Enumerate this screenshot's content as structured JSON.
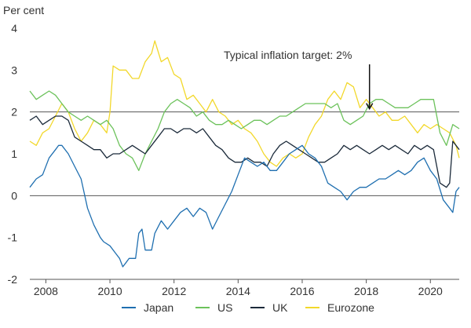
{
  "chart_data": {
    "type": "line",
    "ylabel": "Per cent",
    "ylim": [
      -2,
      4
    ],
    "xlim": [
      2007.5,
      2020.9
    ],
    "y_ticks": [
      -2,
      -1,
      0,
      1,
      2,
      3,
      4
    ],
    "x_ticks": [
      "2008",
      "2010",
      "2012",
      "2014",
      "2016",
      "2018",
      "2020"
    ],
    "annotation": {
      "text": "Typical inflation target: 2%",
      "x": 2018.1,
      "y": 2.0
    },
    "reference_line": 2,
    "zero_line": 0,
    "legend_position": "bottom",
    "colors": {
      "Japan": "#1f6fb0",
      "US": "#6cc25b",
      "UK": "#1b2a3a",
      "Eurozone": "#f2d82b",
      "grid": "#d0d0d0",
      "axis_text": "#333333"
    },
    "series": [
      {
        "name": "Japan",
        "points": [
          [
            2007.5,
            0.2
          ],
          [
            2007.7,
            0.4
          ],
          [
            2007.9,
            0.5
          ],
          [
            2008.1,
            0.9
          ],
          [
            2008.3,
            1.1
          ],
          [
            2008.4,
            1.2
          ],
          [
            2008.5,
            1.2
          ],
          [
            2008.7,
            1.0
          ],
          [
            2008.9,
            0.7
          ],
          [
            2009.1,
            0.4
          ],
          [
            2009.3,
            -0.3
          ],
          [
            2009.5,
            -0.7
          ],
          [
            2009.7,
            -1.0
          ],
          [
            2009.8,
            -1.1
          ],
          [
            2010.0,
            -1.2
          ],
          [
            2010.2,
            -1.4
          ],
          [
            2010.3,
            -1.5
          ],
          [
            2010.4,
            -1.7
          ],
          [
            2010.5,
            -1.6
          ],
          [
            2010.6,
            -1.5
          ],
          [
            2010.8,
            -1.5
          ],
          [
            2010.9,
            -0.9
          ],
          [
            2011.0,
            -0.8
          ],
          [
            2011.1,
            -1.3
          ],
          [
            2011.3,
            -1.3
          ],
          [
            2011.4,
            -0.9
          ],
          [
            2011.6,
            -0.6
          ],
          [
            2011.8,
            -0.8
          ],
          [
            2012.0,
            -0.6
          ],
          [
            2012.2,
            -0.4
          ],
          [
            2012.4,
            -0.3
          ],
          [
            2012.6,
            -0.5
          ],
          [
            2012.8,
            -0.3
          ],
          [
            2013.0,
            -0.4
          ],
          [
            2013.1,
            -0.6
          ],
          [
            2013.2,
            -0.8
          ],
          [
            2013.4,
            -0.5
          ],
          [
            2013.6,
            -0.2
          ],
          [
            2013.8,
            0.1
          ],
          [
            2014.0,
            0.5
          ],
          [
            2014.2,
            0.9
          ],
          [
            2014.4,
            0.8
          ],
          [
            2014.6,
            0.7
          ],
          [
            2014.8,
            0.8
          ],
          [
            2015.0,
            0.6
          ],
          [
            2015.2,
            0.6
          ],
          [
            2015.4,
            0.8
          ],
          [
            2015.6,
            1.0
          ],
          [
            2015.8,
            1.1
          ],
          [
            2016.0,
            1.2
          ],
          [
            2016.2,
            1.0
          ],
          [
            2016.4,
            0.9
          ],
          [
            2016.6,
            0.7
          ],
          [
            2016.8,
            0.3
          ],
          [
            2017.0,
            0.2
          ],
          [
            2017.2,
            0.1
          ],
          [
            2017.4,
            -0.1
          ],
          [
            2017.6,
            0.1
          ],
          [
            2017.8,
            0.2
          ],
          [
            2018.0,
            0.2
          ],
          [
            2018.2,
            0.3
          ],
          [
            2018.4,
            0.4
          ],
          [
            2018.6,
            0.4
          ],
          [
            2018.8,
            0.5
          ],
          [
            2019.0,
            0.6
          ],
          [
            2019.2,
            0.5
          ],
          [
            2019.4,
            0.6
          ],
          [
            2019.6,
            0.8
          ],
          [
            2019.8,
            0.9
          ],
          [
            2020.0,
            0.6
          ],
          [
            2020.2,
            0.4
          ],
          [
            2020.4,
            -0.1
          ],
          [
            2020.6,
            -0.3
          ],
          [
            2020.7,
            -0.4
          ],
          [
            2020.8,
            0.1
          ],
          [
            2020.9,
            0.2
          ]
        ]
      },
      {
        "name": "US",
        "points": [
          [
            2007.5,
            2.5
          ],
          [
            2007.7,
            2.3
          ],
          [
            2007.9,
            2.4
          ],
          [
            2008.1,
            2.5
          ],
          [
            2008.3,
            2.4
          ],
          [
            2008.5,
            2.2
          ],
          [
            2008.7,
            2.0
          ],
          [
            2008.9,
            1.9
          ],
          [
            2009.1,
            1.8
          ],
          [
            2009.3,
            1.9
          ],
          [
            2009.5,
            1.8
          ],
          [
            2009.7,
            1.7
          ],
          [
            2009.9,
            1.8
          ],
          [
            2010.1,
            1.6
          ],
          [
            2010.3,
            1.2
          ],
          [
            2010.5,
            1.0
          ],
          [
            2010.7,
            0.9
          ],
          [
            2010.9,
            0.6
          ],
          [
            2011.1,
            1.0
          ],
          [
            2011.3,
            1.3
          ],
          [
            2011.5,
            1.6
          ],
          [
            2011.7,
            2.0
          ],
          [
            2011.9,
            2.2
          ],
          [
            2012.1,
            2.3
          ],
          [
            2012.3,
            2.2
          ],
          [
            2012.5,
            2.1
          ],
          [
            2012.7,
            1.9
          ],
          [
            2012.9,
            2.0
          ],
          [
            2013.1,
            1.8
          ],
          [
            2013.3,
            1.7
          ],
          [
            2013.5,
            1.7
          ],
          [
            2013.7,
            1.8
          ],
          [
            2013.9,
            1.7
          ],
          [
            2014.1,
            1.6
          ],
          [
            2014.3,
            1.7
          ],
          [
            2014.5,
            1.8
          ],
          [
            2014.7,
            1.8
          ],
          [
            2014.9,
            1.7
          ],
          [
            2015.1,
            1.8
          ],
          [
            2015.3,
            1.9
          ],
          [
            2015.5,
            1.9
          ],
          [
            2015.7,
            2.0
          ],
          [
            2015.9,
            2.1
          ],
          [
            2016.1,
            2.2
          ],
          [
            2016.3,
            2.2
          ],
          [
            2016.5,
            2.2
          ],
          [
            2016.7,
            2.2
          ],
          [
            2016.9,
            2.1
          ],
          [
            2017.1,
            2.2
          ],
          [
            2017.3,
            1.8
          ],
          [
            2017.5,
            1.7
          ],
          [
            2017.7,
            1.8
          ],
          [
            2017.9,
            1.9
          ],
          [
            2018.1,
            2.2
          ],
          [
            2018.3,
            2.3
          ],
          [
            2018.5,
            2.3
          ],
          [
            2018.7,
            2.2
          ],
          [
            2018.9,
            2.1
          ],
          [
            2019.1,
            2.1
          ],
          [
            2019.3,
            2.1
          ],
          [
            2019.5,
            2.2
          ],
          [
            2019.7,
            2.3
          ],
          [
            2019.9,
            2.3
          ],
          [
            2020.1,
            2.3
          ],
          [
            2020.3,
            1.5
          ],
          [
            2020.5,
            1.2
          ],
          [
            2020.7,
            1.7
          ],
          [
            2020.9,
            1.6
          ]
        ]
      },
      {
        "name": "UK",
        "points": [
          [
            2007.5,
            1.8
          ],
          [
            2007.7,
            1.9
          ],
          [
            2007.9,
            1.7
          ],
          [
            2008.1,
            1.8
          ],
          [
            2008.3,
            1.9
          ],
          [
            2008.5,
            1.9
          ],
          [
            2008.7,
            1.8
          ],
          [
            2008.9,
            1.4
          ],
          [
            2009.1,
            1.3
          ],
          [
            2009.3,
            1.2
          ],
          [
            2009.5,
            1.1
          ],
          [
            2009.7,
            1.1
          ],
          [
            2009.9,
            0.9
          ],
          [
            2010.1,
            1.0
          ],
          [
            2010.3,
            1.0
          ],
          [
            2010.5,
            1.1
          ],
          [
            2010.7,
            1.2
          ],
          [
            2010.9,
            1.1
          ],
          [
            2011.1,
            1.0
          ],
          [
            2011.3,
            1.2
          ],
          [
            2011.5,
            1.4
          ],
          [
            2011.7,
            1.6
          ],
          [
            2011.9,
            1.6
          ],
          [
            2012.1,
            1.5
          ],
          [
            2012.3,
            1.6
          ],
          [
            2012.5,
            1.6
          ],
          [
            2012.7,
            1.5
          ],
          [
            2012.9,
            1.6
          ],
          [
            2013.1,
            1.4
          ],
          [
            2013.3,
            1.2
          ],
          [
            2013.5,
            1.1
          ],
          [
            2013.7,
            0.9
          ],
          [
            2013.9,
            0.8
          ],
          [
            2014.1,
            0.8
          ],
          [
            2014.3,
            0.9
          ],
          [
            2014.5,
            0.8
          ],
          [
            2014.7,
            0.8
          ],
          [
            2014.9,
            0.7
          ],
          [
            2015.1,
            1.0
          ],
          [
            2015.3,
            1.2
          ],
          [
            2015.5,
            1.3
          ],
          [
            2015.7,
            1.2
          ],
          [
            2015.9,
            1.1
          ],
          [
            2016.1,
            1.0
          ],
          [
            2016.3,
            0.9
          ],
          [
            2016.5,
            0.8
          ],
          [
            2016.7,
            0.8
          ],
          [
            2016.9,
            0.9
          ],
          [
            2017.1,
            1.0
          ],
          [
            2017.3,
            1.2
          ],
          [
            2017.5,
            1.1
          ],
          [
            2017.7,
            1.2
          ],
          [
            2017.9,
            1.1
          ],
          [
            2018.1,
            1.0
          ],
          [
            2018.3,
            1.1
          ],
          [
            2018.5,
            1.2
          ],
          [
            2018.7,
            1.1
          ],
          [
            2018.9,
            1.2
          ],
          [
            2019.1,
            1.1
          ],
          [
            2019.3,
            1.0
          ],
          [
            2019.5,
            1.2
          ],
          [
            2019.7,
            1.1
          ],
          [
            2019.9,
            1.2
          ],
          [
            2020.1,
            1.1
          ],
          [
            2020.3,
            0.3
          ],
          [
            2020.5,
            0.2
          ],
          [
            2020.6,
            0.3
          ],
          [
            2020.7,
            1.3
          ],
          [
            2020.8,
            1.2
          ],
          [
            2020.9,
            1.1
          ]
        ]
      },
      {
        "name": "Eurozone",
        "points": [
          [
            2007.5,
            1.3
          ],
          [
            2007.7,
            1.2
          ],
          [
            2007.9,
            1.5
          ],
          [
            2008.1,
            1.6
          ],
          [
            2008.3,
            1.9
          ],
          [
            2008.5,
            2.2
          ],
          [
            2008.7,
            2.0
          ],
          [
            2008.9,
            1.6
          ],
          [
            2009.1,
            1.3
          ],
          [
            2009.3,
            1.5
          ],
          [
            2009.5,
            1.8
          ],
          [
            2009.7,
            1.7
          ],
          [
            2009.9,
            1.5
          ],
          [
            2010.0,
            2.0
          ],
          [
            2010.1,
            3.1
          ],
          [
            2010.3,
            3.0
          ],
          [
            2010.5,
            3.0
          ],
          [
            2010.7,
            2.8
          ],
          [
            2010.9,
            2.8
          ],
          [
            2011.1,
            3.2
          ],
          [
            2011.3,
            3.4
          ],
          [
            2011.4,
            3.7
          ],
          [
            2011.6,
            3.2
          ],
          [
            2011.8,
            3.3
          ],
          [
            2012.0,
            2.9
          ],
          [
            2012.2,
            2.8
          ],
          [
            2012.4,
            2.3
          ],
          [
            2012.6,
            2.4
          ],
          [
            2012.8,
            2.2
          ],
          [
            2013.0,
            2.0
          ],
          [
            2013.2,
            2.3
          ],
          [
            2013.4,
            2.0
          ],
          [
            2013.6,
            1.9
          ],
          [
            2013.8,
            1.7
          ],
          [
            2014.0,
            1.8
          ],
          [
            2014.2,
            1.6
          ],
          [
            2014.4,
            1.5
          ],
          [
            2014.6,
            1.3
          ],
          [
            2014.8,
            1.0
          ],
          [
            2015.0,
            0.8
          ],
          [
            2015.2,
            0.7
          ],
          [
            2015.4,
            0.9
          ],
          [
            2015.6,
            1.0
          ],
          [
            2015.8,
            0.9
          ],
          [
            2016.0,
            1.0
          ],
          [
            2016.2,
            1.4
          ],
          [
            2016.4,
            1.7
          ],
          [
            2016.6,
            1.9
          ],
          [
            2016.8,
            2.3
          ],
          [
            2017.0,
            2.5
          ],
          [
            2017.2,
            2.3
          ],
          [
            2017.4,
            2.7
          ],
          [
            2017.6,
            2.6
          ],
          [
            2017.8,
            2.1
          ],
          [
            2018.0,
            2.3
          ],
          [
            2018.2,
            2.1
          ],
          [
            2018.4,
            1.9
          ],
          [
            2018.6,
            2.0
          ],
          [
            2018.8,
            1.8
          ],
          [
            2019.0,
            1.8
          ],
          [
            2019.2,
            1.9
          ],
          [
            2019.4,
            1.7
          ],
          [
            2019.6,
            1.5
          ],
          [
            2019.8,
            1.7
          ],
          [
            2020.0,
            1.6
          ],
          [
            2020.2,
            1.7
          ],
          [
            2020.4,
            1.6
          ],
          [
            2020.6,
            1.5
          ],
          [
            2020.8,
            1.2
          ],
          [
            2020.9,
            0.9
          ]
        ]
      }
    ]
  }
}
